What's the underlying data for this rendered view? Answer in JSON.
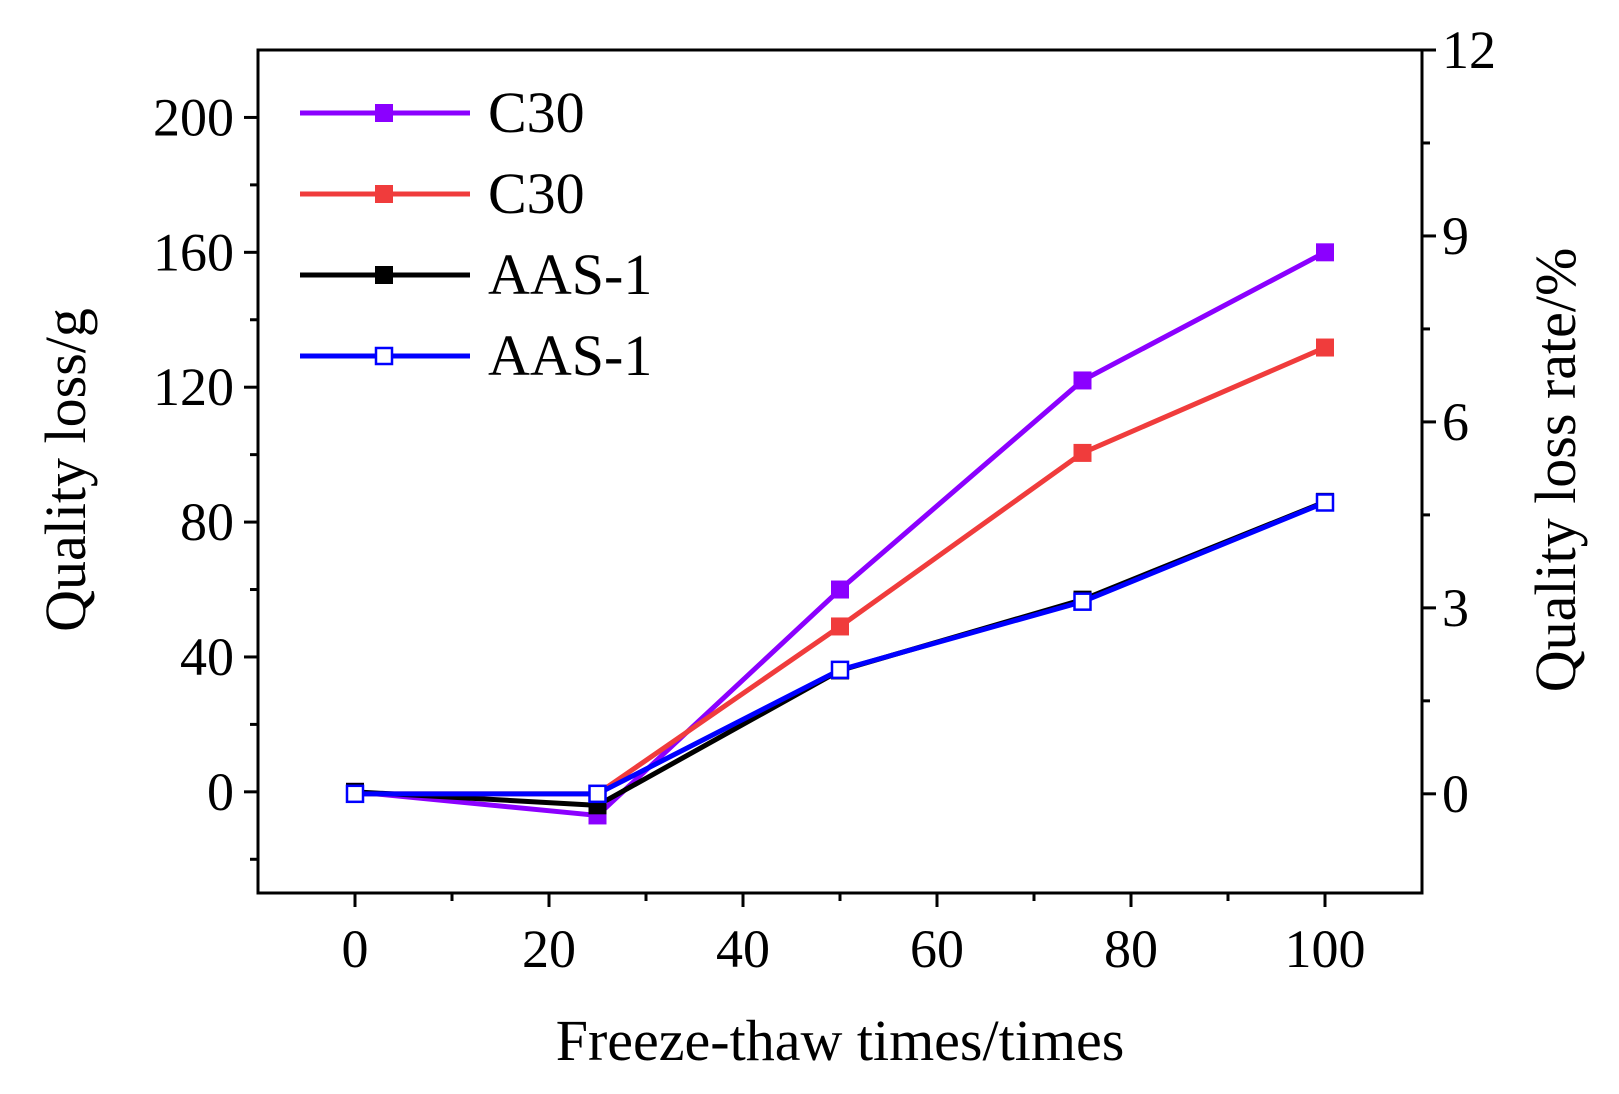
{
  "chart_data": {
    "type": "line",
    "title": "",
    "xlabel": "Freeze-thaw times/times",
    "ylabel": "Quality loss/g",
    "y2label": "Quality loss rate/%",
    "xlim": [
      -10,
      110
    ],
    "ylim": [
      -30,
      220
    ],
    "y2lim": [
      -1.6,
      12
    ],
    "xticks": [
      0,
      20,
      40,
      60,
      80,
      100
    ],
    "yticks": [
      0,
      40,
      80,
      120,
      160,
      200
    ],
    "y2ticks": [
      0,
      3,
      6,
      9,
      12
    ],
    "x": [
      0,
      25,
      50,
      75,
      100
    ],
    "series": [
      {
        "name": "C30",
        "axis": "left",
        "color": "#8b00ff",
        "marker": "filled-square",
        "values": [
          0,
          -7,
          60,
          122,
          160
        ]
      },
      {
        "name": "C30",
        "axis": "right",
        "color": "#f03c3c",
        "marker": "filled-square",
        "values": [
          0,
          0,
          2.7,
          5.5,
          7.2
        ]
      },
      {
        "name": "AAS-1",
        "axis": "left",
        "color": "#000000",
        "marker": "filled-square",
        "values": [
          0,
          -4,
          36,
          57,
          86
        ]
      },
      {
        "name": "AAS-1",
        "axis": "right",
        "color": "#0000ff",
        "marker": "open-square",
        "values": [
          0,
          0,
          2.0,
          3.1,
          4.7
        ]
      }
    ],
    "legend_position": "top-left"
  }
}
